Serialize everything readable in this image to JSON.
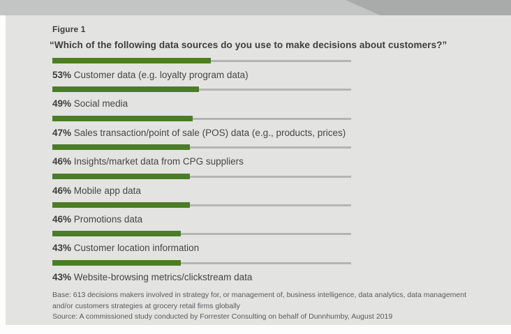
{
  "figure": {
    "label": "Figure 1",
    "question": "“Which of the following data sources do you use to make decisions about customers?”"
  },
  "chart_data": {
    "type": "bar",
    "orientation": "horizontal",
    "unit": "%",
    "xlim": [
      0,
      100
    ],
    "title": "Which of the following data sources do you use to make decisions about customers?",
    "categories": [
      "Customer data (e.g. loyalty program data)",
      "Social media",
      "Sales transaction/point of sale (POS) data (e.g., products, prices)",
      "Insights/market data from CPG suppliers",
      "Mobile app data",
      "Promotions data",
      "Customer location information",
      "Website-browsing metrics/clickstream data"
    ],
    "values": [
      53,
      49,
      47,
      46,
      46,
      46,
      43,
      43
    ],
    "bar_color": "#4a7d26",
    "track_color": "#b3b4b3",
    "legend": "none",
    "grid": "off"
  },
  "footer": {
    "base_line1": "Base: 613 decisions makers involved in strategy for, or management of, business intelligence, data analytics, data management",
    "base_line2": "and/or customers strategies at grocery retail firms globally",
    "source": "Source: A commissioned study conducted by Forrester Consulting on behalf of Dunnhumby, August 2019"
  },
  "colors": {
    "band_light": "#c3c4c4",
    "band_dark": "#a9abab",
    "panel_bg": "#e3e3e2",
    "page_bg": "#fdfdfd",
    "accent_green": "#4a7d26"
  }
}
